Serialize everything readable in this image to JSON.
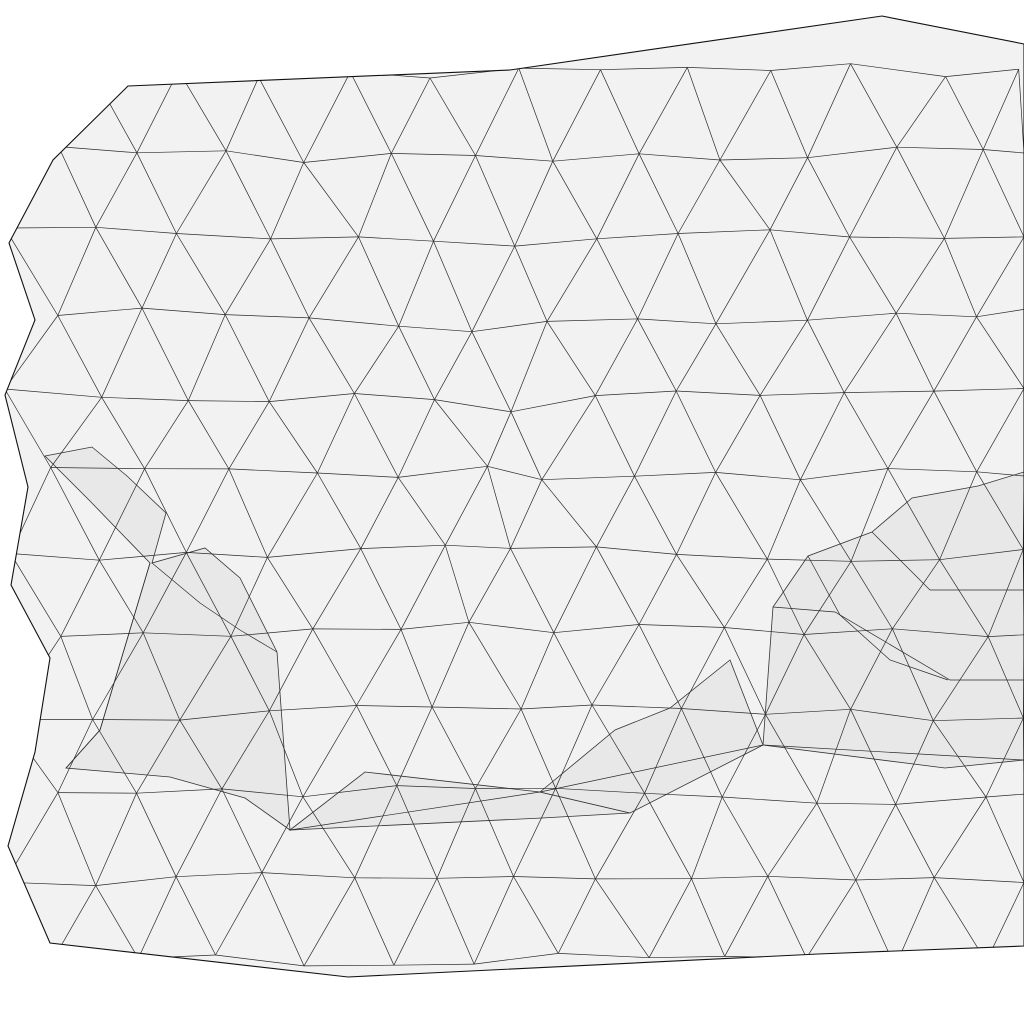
{
  "scene": {
    "kind": "wireframe-triangle-mesh",
    "background_color": "#ffffff",
    "face_color": "#f2f2f2",
    "fold_face_color": "#e6e6e6",
    "edge_color": "#2b2b2b"
  }
}
